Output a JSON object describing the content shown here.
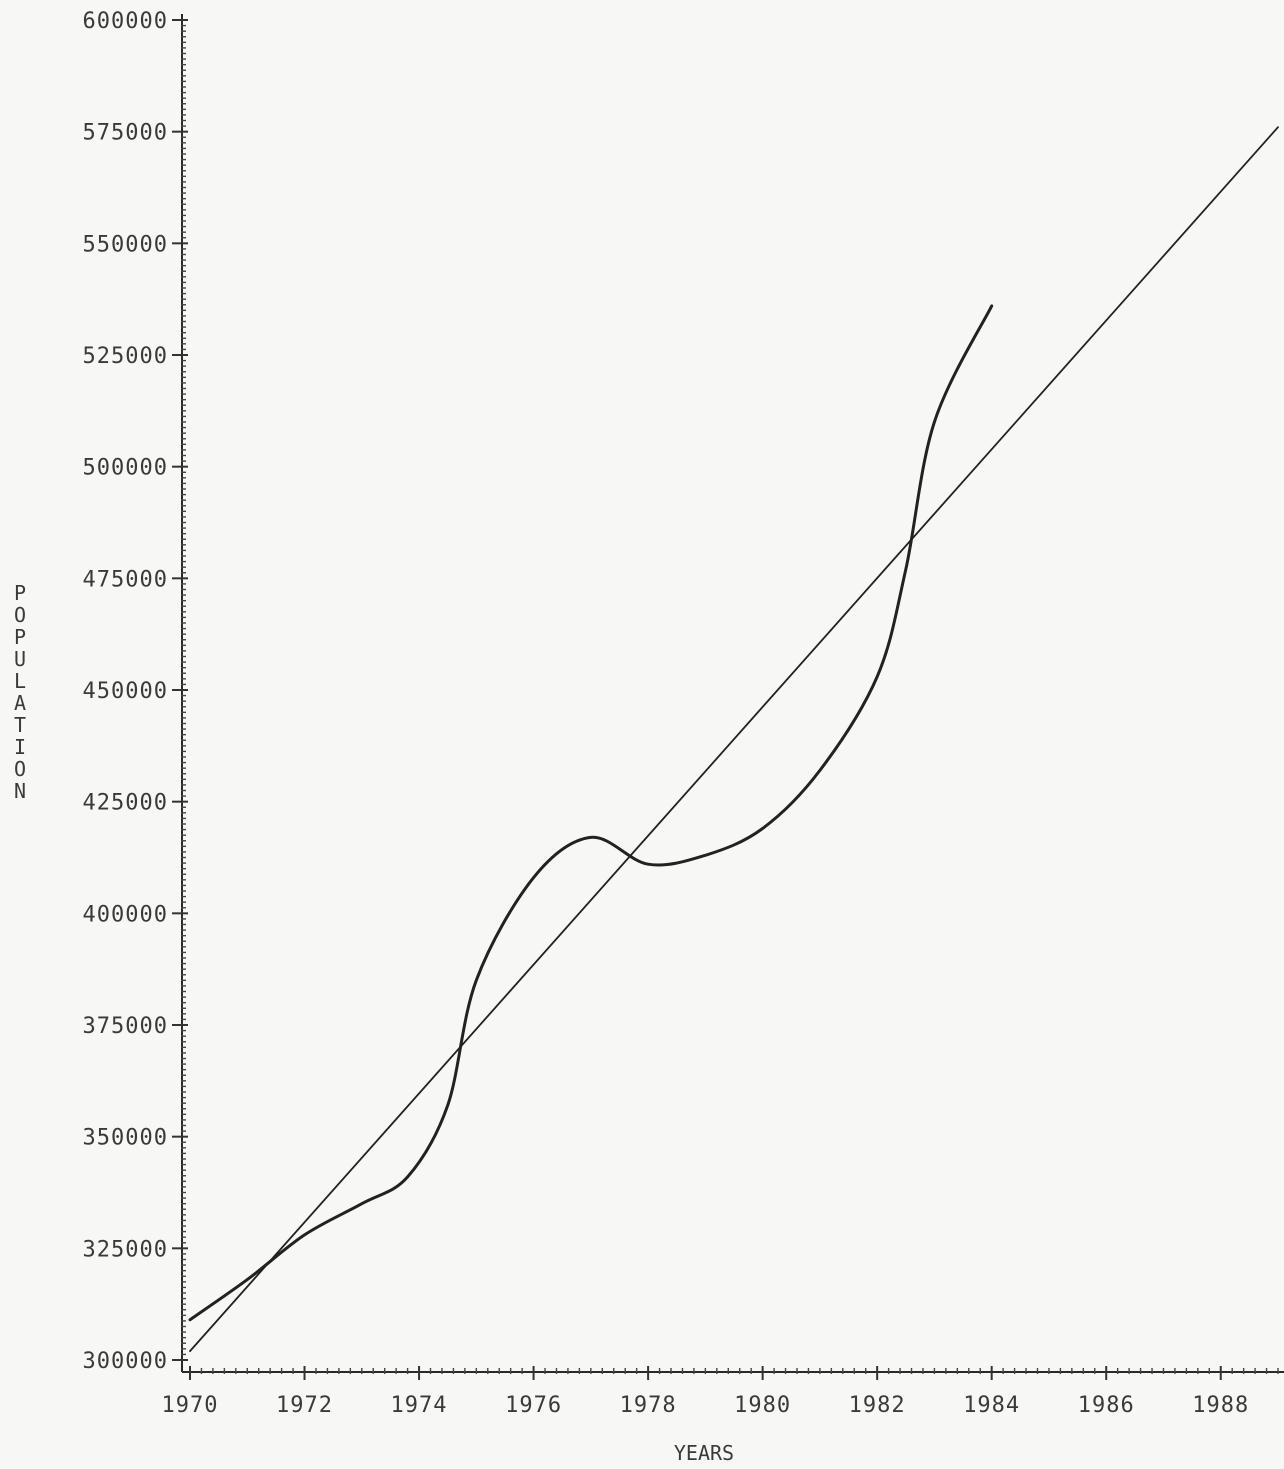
{
  "chart_data": {
    "type": "line",
    "title": "",
    "xlabel": "YEARS",
    "ylabel": "POPULATION",
    "xlim": [
      1970,
      1989
    ],
    "ylim": [
      300000,
      600000
    ],
    "x_ticks": [
      1970,
      1972,
      1974,
      1976,
      1978,
      1980,
      1982,
      1984,
      1986,
      1988
    ],
    "x_tick_labels": [
      "1970",
      "1972",
      "1974",
      "1976",
      "1978",
      "1980",
      "1982",
      "1984",
      "1986",
      "1988"
    ],
    "y_ticks": [
      300000,
      325000,
      350000,
      375000,
      400000,
      425000,
      450000,
      475000,
      500000,
      525000,
      550000,
      575000,
      600000
    ],
    "y_tick_labels": [
      "300000",
      "325000",
      "350000",
      "375000",
      "400000",
      "425000",
      "450000",
      "475000",
      "500000",
      "525000",
      "550000",
      "575000",
      "600000"
    ],
    "grid": false,
    "series": [
      {
        "style": "curve",
        "x": [
          1970,
          1971,
          1972,
          1973,
          1973.8,
          1974.5,
          1975,
          1976,
          1977,
          1978,
          1979,
          1980,
          1981,
          1982,
          1982.5,
          1983,
          1984
        ],
        "y": [
          309000,
          318000,
          328000,
          335000,
          341000,
          357000,
          385000,
          408000,
          417000,
          411000,
          413000,
          419000,
          432000,
          453000,
          477000,
          510000,
          536000
        ]
      },
      {
        "style": "thin",
        "x": [
          1970,
          1989
        ],
        "y": [
          302000,
          576000
        ]
      }
    ]
  }
}
